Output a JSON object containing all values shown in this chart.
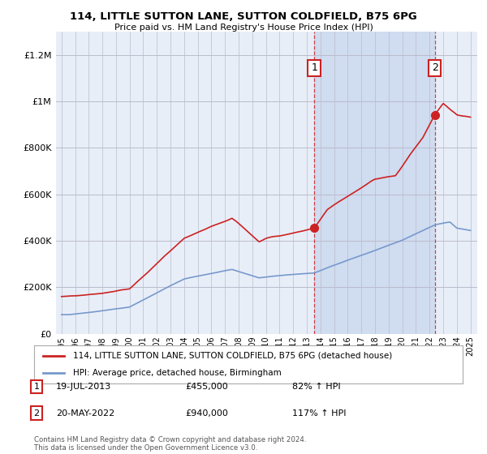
{
  "title": "114, LITTLE SUTTON LANE, SUTTON COLDFIELD, B75 6PG",
  "subtitle": "Price paid vs. HM Land Registry's House Price Index (HPI)",
  "legend_label_red": "114, LITTLE SUTTON LANE, SUTTON COLDFIELD, B75 6PG (detached house)",
  "legend_label_blue": "HPI: Average price, detached house, Birmingham",
  "annotation1_date": "19-JUL-2013",
  "annotation1_price": "£455,000",
  "annotation1_hpi": "82% ↑ HPI",
  "annotation2_date": "20-MAY-2022",
  "annotation2_price": "£940,000",
  "annotation2_hpi": "117% ↑ HPI",
  "footer": "Contains HM Land Registry data © Crown copyright and database right 2024.\nThis data is licensed under the Open Government Licence v3.0.",
  "red_color": "#cc2222",
  "blue_color": "#7799cc",
  "vline_color": "#cc2222",
  "grid_color": "#bbbbcc",
  "background_color": "#e8eef8",
  "highlight_color": "#d0dcf0",
  "ylim": [
    0,
    1300000
  ],
  "yticks": [
    0,
    200000,
    400000,
    600000,
    800000,
    1000000,
    1200000
  ],
  "xlim_start": 1994.6,
  "xlim_end": 2025.5,
  "point1_x": 2013.54,
  "point1_y": 455000,
  "point2_x": 2022.38,
  "point2_y": 940000,
  "vline1_x": 2013.54,
  "vline2_x": 2022.38
}
